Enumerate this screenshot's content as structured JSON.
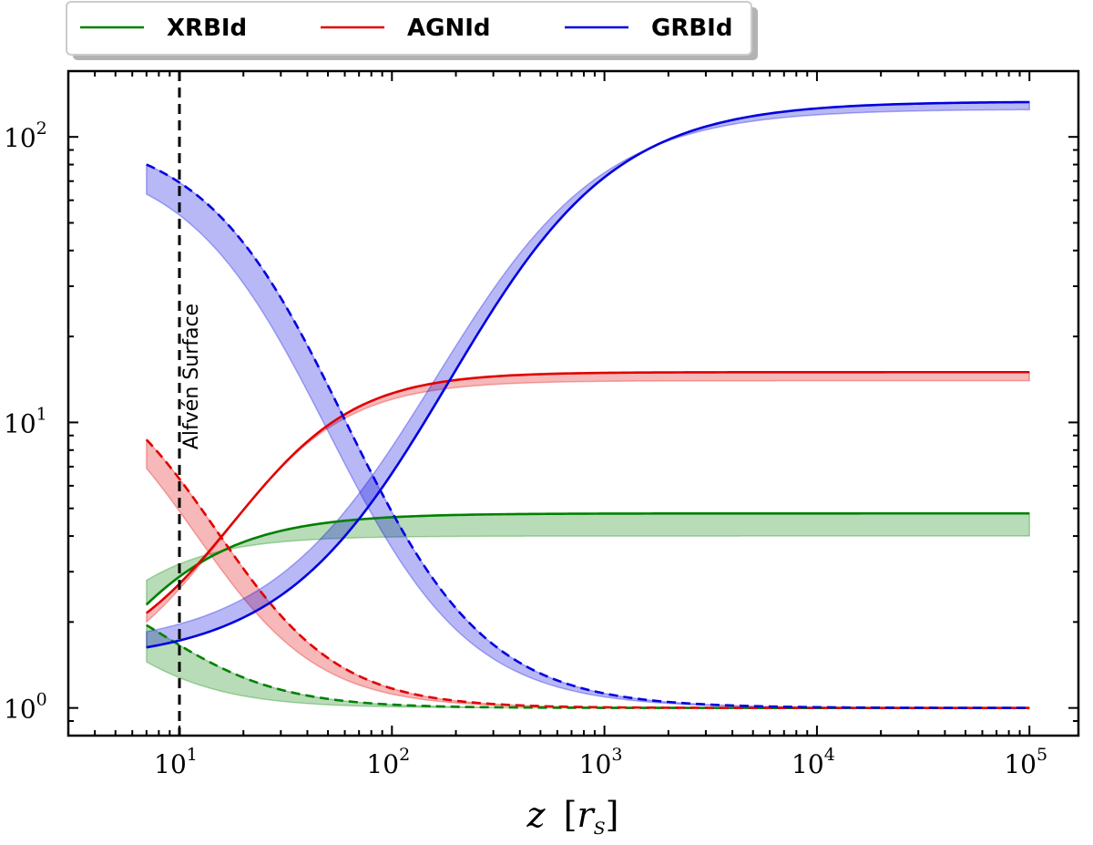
{
  "chart_data": {
    "type": "line",
    "xlabel_main": "z",
    "xlabel_unit": "r",
    "xlabel_sub": "S",
    "ylabel": "",
    "xscale": "log",
    "yscale": "log",
    "xlim": [
      3,
      170000
    ],
    "ylim": [
      0.8,
      170
    ],
    "grid": false,
    "legend_position": "top-outside",
    "x_ticks": [
      {
        "base": "10",
        "exp": "1",
        "value": 10
      },
      {
        "base": "10",
        "exp": "2",
        "value": 100
      },
      {
        "base": "10",
        "exp": "3",
        "value": 1000
      },
      {
        "base": "10",
        "exp": "4",
        "value": 10000
      },
      {
        "base": "10",
        "exp": "5",
        "value": 100000
      }
    ],
    "y_ticks": [
      {
        "base": "10",
        "exp": "0",
        "value": 1
      },
      {
        "base": "10",
        "exp": "1",
        "value": 10
      },
      {
        "base": "10",
        "exp": "2",
        "value": 100
      }
    ],
    "annotations": [
      {
        "text": "Alfvén Surface",
        "x": 10,
        "style": "dashed-vertical-line"
      }
    ],
    "series": [
      {
        "name": "XRBId",
        "color": "#008000",
        "x0": 7,
        "solid": {
          "start": 2.3,
          "end": 4.8,
          "z0": 3,
          "power": 1.3
        },
        "solid_band": {
          "start": 2.8,
          "end": 4.0,
          "z0": 2.5,
          "power": 1.5
        },
        "dashed": {
          "start": 1.95,
          "end": 1.0,
          "z0": 8,
          "power": 1.5
        },
        "dashed_band": {
          "start": 1.45,
          "end": 1.0,
          "z0": 3.5,
          "power": 1.5
        }
      },
      {
        "name": "AGNId",
        "color": "#e00000",
        "x0": 7,
        "solid": {
          "start": 2.15,
          "end": 15,
          "z0": 18,
          "power": 1.5
        },
        "solid_band": {
          "start": 2.0,
          "end": 14,
          "z0": 16,
          "power": 1.5
        },
        "dashed": {
          "start": 8.7,
          "end": 1.0,
          "z0": 15,
          "power": 1.5
        },
        "dashed_band": {
          "start": 6.9,
          "end": 1.0,
          "z0": 12,
          "power": 1.5
        }
      },
      {
        "name": "GRBId",
        "color": "#0000e0",
        "x0": 7,
        "solid": {
          "start": 1.63,
          "end": 133,
          "z0": 185,
          "power": 1.1
        },
        "solid_band": {
          "start": 1.85,
          "end": 125,
          "z0": 160,
          "power": 1.1
        },
        "dashed": {
          "start": 80,
          "end": 1.0,
          "z0": 60,
          "power": 1.3
        },
        "dashed_band": {
          "start": 63,
          "end": 1.0,
          "z0": 50,
          "power": 1.3
        }
      }
    ]
  }
}
